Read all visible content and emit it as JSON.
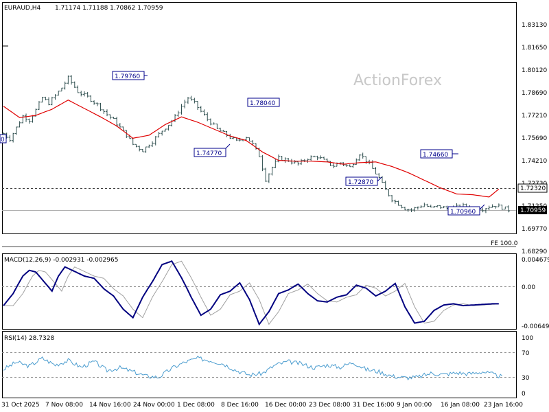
{
  "header": {
    "symbol": "EURAUD,H4",
    "ohlc": "1.71174 1.71188 1.70862 1.70959"
  },
  "watermark": "ActionForex",
  "colors": {
    "background": "#ffffff",
    "bars": "#2f4f4f",
    "moving_average": "#e00000",
    "macd_line": "#000080",
    "macd_signal": "#a0a0a0",
    "rsi_line": "#4a9ccf",
    "label_box": "#00008b",
    "current_price_box": "#000000",
    "ref_line": "#404040"
  },
  "price_panel": {
    "fe_label": "FE 100.0",
    "axis_ticks": [
      "1.83130",
      "1.81650",
      "1.80120",
      "1.78690",
      "1.77210",
      "1.75690",
      "1.74210",
      "1.72730",
      "1.71250",
      "1.69770",
      "1.68290"
    ],
    "ma_price_tag": "1.72320",
    "last_price_tag": "1.70959",
    "swing_labels": [
      "1.79760",
      "1.74770",
      "1.78040",
      "1.72870",
      "1.74660",
      "1.70960"
    ],
    "left_edge_label": "0"
  },
  "macd_panel": {
    "title": "MACD(12,26,9) -0.002931 -0.002965",
    "axis_ticks": [
      "0.004679",
      "0.00",
      "-0.006496"
    ]
  },
  "rsi_panel": {
    "title": "RSI(14) 28.7328",
    "axis_ticks": [
      "100",
      "70",
      "30",
      "0"
    ]
  },
  "time_axis": [
    "31 Oct 2025",
    "7 Nov 08:00",
    "14 Nov 16:00",
    "24 Nov 00:00",
    "1 Dec 08:00",
    "8 Dec 16:00",
    "16 Dec 00:00",
    "23 Dec 08:00",
    "31 Dec 16:00",
    "9 Jan 00:00",
    "16 Jan 08:00",
    "23 Jan 16:00"
  ],
  "chart_data": {
    "type": "line",
    "title": "EURAUD,H4",
    "price_ylim": [
      1.6829,
      1.8313
    ],
    "price_anchors": {
      "t": [
        0,
        2,
        4,
        6,
        8,
        10,
        12,
        14,
        16,
        18,
        20,
        23,
        26,
        29,
        32,
        34,
        36,
        38,
        40,
        43,
        46,
        49,
        51,
        53,
        55,
        57,
        59,
        61,
        63,
        66,
        69,
        72,
        75,
        77,
        79,
        81,
        83,
        85,
        88,
        91,
        94,
        97,
        100,
        102,
        104,
        107,
        110,
        113,
        116,
        118,
        120,
        122,
        124,
        126,
        128,
        130,
        132,
        134,
        136,
        138,
        140,
        142,
        144,
        146,
        148,
        150,
        152,
        154,
        156
      ],
      "close": [
        1.7595,
        1.756,
        1.7635,
        1.771,
        1.7685,
        1.775,
        1.783,
        1.7795,
        1.7845,
        1.7895,
        1.796,
        1.787,
        1.7835,
        1.7785,
        1.772,
        1.7685,
        1.7635,
        1.7585,
        1.7525,
        1.7485,
        1.7545,
        1.7615,
        1.7655,
        1.7705,
        1.7775,
        1.783,
        1.7795,
        1.774,
        1.769,
        1.7625,
        1.7585,
        1.7545,
        1.7575,
        1.7525,
        1.745,
        1.7295,
        1.7375,
        1.7435,
        1.742,
        1.7395,
        1.7435,
        1.7445,
        1.7405,
        1.7385,
        1.7405,
        1.7375,
        1.7465,
        1.7395,
        1.7305,
        1.7225,
        1.7165,
        1.7135,
        1.7105,
        1.7096,
        1.7115,
        1.713,
        1.7108,
        1.7118,
        1.7111,
        1.71,
        1.7115,
        1.7121,
        1.711,
        1.7108,
        1.7102,
        1.7118,
        1.7125,
        1.7112,
        1.70959
      ]
    },
    "ma": {
      "t": [
        0,
        5,
        10,
        15,
        20,
        25,
        30,
        35,
        40,
        45,
        50,
        55,
        60,
        65,
        70,
        75,
        80,
        85,
        90,
        95,
        100,
        105,
        110,
        115,
        120,
        125,
        130,
        135,
        140,
        145,
        150,
        153
      ],
      "value": [
        1.7775,
        1.77,
        1.7715,
        1.7755,
        1.7815,
        1.776,
        1.7705,
        1.7645,
        1.7565,
        1.7585,
        1.7655,
        1.7705,
        1.767,
        1.7625,
        1.758,
        1.755,
        1.7475,
        1.742,
        1.7415,
        1.7415,
        1.741,
        1.7395,
        1.7405,
        1.741,
        1.738,
        1.734,
        1.729,
        1.724,
        1.72,
        1.7195,
        1.718,
        1.7232
      ]
    },
    "macd": {
      "ylim": [
        -0.0065,
        0.0047
      ],
      "t": [
        0,
        3,
        6,
        8,
        10,
        13,
        15,
        17,
        19,
        22,
        25,
        28,
        31,
        34,
        37,
        40,
        43,
        46,
        49,
        52,
        55,
        58,
        61,
        64,
        67,
        70,
        73,
        76,
        79,
        82,
        85,
        88,
        91,
        94,
        97,
        100,
        103,
        106,
        109,
        112,
        115,
        118,
        121,
        124,
        127,
        130,
        133,
        136,
        139,
        142,
        145,
        148,
        151,
        153
      ],
      "value": [
        -0.0032,
        -0.0012,
        0.0018,
        0.0028,
        0.0025,
        0.0005,
        -0.0008,
        0.0018,
        0.0034,
        0.0026,
        0.0018,
        0.0014,
        -0.0004,
        -0.0016,
        -0.0038,
        -0.0052,
        -0.0018,
        0.0008,
        0.0038,
        0.0044,
        0.0015,
        -0.0018,
        -0.0048,
        -0.0038,
        -0.0014,
        -0.0008,
        0.0006,
        -0.0022,
        -0.0063,
        -0.0042,
        -0.0012,
        -0.0006,
        0.0004,
        -0.0012,
        -0.0024,
        -0.0026,
        -0.0018,
        -0.0014,
        0.0002,
        -0.0003,
        -0.0016,
        -0.0008,
        0.0005,
        -0.0034,
        -0.0061,
        -0.0058,
        -0.004,
        -0.0031,
        -0.0029,
        -0.0032,
        -0.0031,
        -0.003,
        -0.0029,
        -0.0029
      ]
    },
    "rsi": {
      "ylim": [
        0,
        100
      ],
      "t": [
        0,
        4,
        8,
        12,
        16,
        20,
        24,
        28,
        32,
        36,
        40,
        44,
        48,
        52,
        56,
        60,
        64,
        68,
        72,
        76,
        80,
        84,
        88,
        92,
        96,
        100,
        104,
        108,
        112,
        116,
        120,
        124,
        128,
        132,
        136,
        140,
        144,
        148,
        152,
        154
      ],
      "value": [
        42,
        55,
        48,
        62,
        50,
        58,
        46,
        56,
        40,
        45,
        38,
        30,
        28,
        44,
        55,
        62,
        58,
        52,
        40,
        32,
        35,
        50,
        56,
        52,
        45,
        50,
        46,
        55,
        42,
        38,
        30,
        27,
        28,
        35,
        33,
        36,
        34,
        38,
        32,
        28.7
      ]
    },
    "xlabel": "",
    "ylabel": ""
  }
}
